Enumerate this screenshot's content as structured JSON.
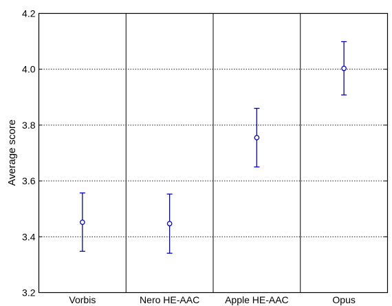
{
  "chart_data": {
    "type": "scatter",
    "title": "",
    "xlabel": "",
    "ylabel": "Average score",
    "ylim": [
      3.2,
      4.2
    ],
    "yticks": [
      "3.2",
      "3.4",
      "3.6",
      "3.8",
      "4.0",
      "4.2"
    ],
    "categories": [
      "Vorbis",
      "Nero HE-AAC",
      "Apple HE-AAC",
      "Opus"
    ],
    "series": [
      {
        "values": [
          3.452,
          3.447,
          3.755,
          4.003
        ],
        "lower": [
          3.348,
          3.341,
          3.65,
          3.908
        ],
        "upper": [
          3.557,
          3.553,
          3.86,
          4.099
        ]
      }
    ],
    "grid": "horizontal dotted lines at interior y ticks",
    "colors": {
      "marker": "#0000cc",
      "frame": "#000000",
      "grid": "#000000"
    }
  }
}
